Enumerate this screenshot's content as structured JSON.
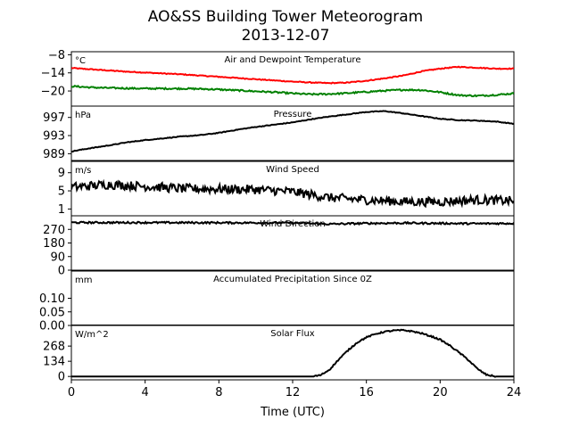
{
  "title_line1": "AO&SS Building Tower Meteorogram",
  "title_line2": "2013-12-07",
  "xlabel": "Time (UTC)",
  "colors": {
    "temperature": "#ff0000",
    "dewpoint": "#008000",
    "line": "#000000"
  },
  "chart_data": [
    {
      "type": "line",
      "title": "Air and Dewpoint Temperature",
      "unit": "°C",
      "xlim": [
        0,
        24
      ],
      "ylim": [
        -25,
        -7
      ],
      "yticks": [
        -8,
        -14,
        -20
      ],
      "series": [
        {
          "name": "",
          "color": "#ff0000",
          "x": [
            0,
            1,
            2,
            3,
            4,
            5,
            6,
            7,
            8,
            9,
            10,
            11,
            12,
            13,
            14,
            15,
            16,
            17,
            18,
            19,
            20,
            21,
            22,
            23,
            24
          ],
          "y": [
            -12.4,
            -12.8,
            -13.2,
            -13.6,
            -13.9,
            -14.2,
            -14.5,
            -14.9,
            -15.3,
            -15.7,
            -16.1,
            -16.5,
            -16.9,
            -17.2,
            -17.4,
            -17.2,
            -16.6,
            -15.8,
            -14.9,
            -13.5,
            -12.6,
            -12.0,
            -12.3,
            -12.6,
            -12.6
          ],
          "noise": 0.15
        },
        {
          "name": "",
          "color": "#008000",
          "x": [
            0,
            1,
            2,
            3,
            4,
            5,
            6,
            7,
            8,
            9,
            10,
            11,
            12,
            13,
            14,
            15,
            16,
            17,
            18,
            19,
            20,
            21,
            22,
            23,
            24
          ],
          "y": [
            -18.4,
            -18.8,
            -19.0,
            -19.1,
            -19.2,
            -19.2,
            -19.2,
            -19.3,
            -19.5,
            -19.8,
            -20.1,
            -20.4,
            -20.8,
            -21.1,
            -21.0,
            -20.7,
            -20.3,
            -19.9,
            -19.6,
            -19.7,
            -20.4,
            -21.4,
            -21.6,
            -21.3,
            -20.8
          ],
          "noise": 0.25
        }
      ]
    },
    {
      "type": "line",
      "title": "Pressure",
      "unit": "hPa",
      "xlim": [
        0,
        24
      ],
      "ylim": [
        987.5,
        999.5
      ],
      "yticks": [
        997,
        993,
        989
      ],
      "series": [
        {
          "name": "",
          "color": "#000000",
          "x": [
            0,
            1,
            2,
            3,
            4,
            5,
            6,
            7,
            8,
            9,
            10,
            11,
            12,
            13,
            14,
            15,
            16,
            17,
            18,
            19,
            20,
            21,
            22,
            23,
            24
          ],
          "y": [
            989.5,
            990.2,
            990.8,
            991.5,
            992.0,
            992.4,
            992.8,
            993.1,
            993.6,
            994.3,
            994.9,
            995.4,
            995.9,
            996.6,
            997.2,
            997.7,
            998.2,
            998.4,
            997.9,
            997.3,
            996.7,
            996.4,
            996.3,
            996.1,
            995.6
          ],
          "noise": 0.08
        }
      ]
    },
    {
      "type": "line",
      "title": "Wind Speed",
      "unit": "m/s",
      "xlim": [
        0,
        24
      ],
      "ylim": [
        -0.5,
        11.5
      ],
      "yticks": [
        9,
        5,
        1
      ],
      "series": [
        {
          "name": "",
          "color": "#000000",
          "x": [
            0,
            2,
            4,
            6,
            8,
            10,
            12,
            14,
            16,
            18,
            20,
            22,
            24
          ],
          "y": [
            5.8,
            6.4,
            6.0,
            5.5,
            5.4,
            5.3,
            4.8,
            3.5,
            3.0,
            2.6,
            2.6,
            3.0,
            2.8
          ],
          "noise": 1.0
        }
      ]
    },
    {
      "type": "line",
      "title": "Wind Direction",
      "unit": "",
      "xlim": [
        0,
        24
      ],
      "ylim": [
        0,
        360
      ],
      "yticks": [
        270,
        180,
        90,
        0
      ],
      "series": [
        {
          "name": "",
          "color": "#000000",
          "x": [
            0,
            4,
            8,
            12,
            14,
            16,
            18,
            20,
            22,
            24
          ],
          "y": [
            315,
            315,
            314,
            313,
            305,
            310,
            312,
            310,
            308,
            310
          ],
          "noise": 6
        }
      ]
    },
    {
      "type": "line",
      "title": "Accumulated Precipitation Since 0Z",
      "unit": "mm",
      "xlim": [
        0,
        24
      ],
      "ylim": [
        0,
        0.2
      ],
      "yticks": [
        0.1,
        0.05,
        0.0
      ],
      "series": [
        {
          "name": "",
          "color": "#000000",
          "x": [
            0,
            24
          ],
          "y": [
            0,
            0
          ],
          "noise": 0
        }
      ]
    },
    {
      "type": "line",
      "title": "Solar Flux",
      "unit": "W/m^2",
      "xlim": [
        0,
        24
      ],
      "ylim": [
        -30,
        450
      ],
      "yticks": [
        268,
        134,
        0
      ],
      "series": [
        {
          "name": "",
          "color": "#000000",
          "x": [
            0,
            13,
            13.5,
            14,
            14.5,
            15,
            15.5,
            16,
            16.5,
            17,
            17.5,
            18,
            18.5,
            19,
            19.5,
            20,
            20.5,
            21,
            21.5,
            22,
            22.5,
            23,
            24
          ],
          "y": [
            0,
            0,
            10,
            60,
            150,
            230,
            300,
            345,
            375,
            395,
            405,
            408,
            398,
            380,
            355,
            325,
            275,
            215,
            150,
            70,
            15,
            0,
            0
          ],
          "noise": 6
        }
      ]
    }
  ],
  "xticks": [
    0,
    4,
    8,
    12,
    16,
    20,
    24
  ]
}
